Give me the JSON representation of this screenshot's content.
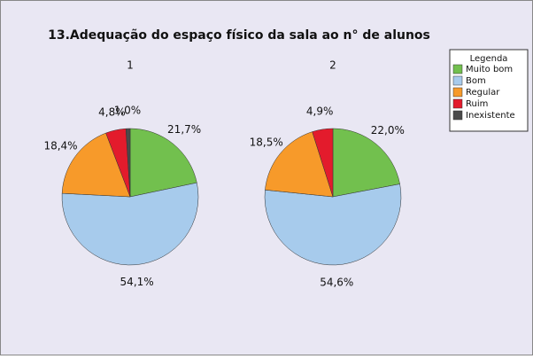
{
  "chart_data": {
    "type": "pie",
    "title": "13.Adequação do espaço físico da sala ao n° de alunos",
    "legend_title": "Legenda",
    "categories": [
      "Muito bom",
      "Bom",
      "Regular",
      "Ruim",
      "Inexistente"
    ],
    "colors": [
      "#72c04e",
      "#a7cbec",
      "#f79a2a",
      "#e31b2c",
      "#4a4a4a"
    ],
    "pies": [
      {
        "name": "1",
        "values": [
          21.7,
          54.1,
          18.4,
          4.8,
          1.0
        ],
        "value_labels": [
          "21,7%",
          "54,1%",
          "18,4%",
          "4,8%",
          "1,0%"
        ]
      },
      {
        "name": "2",
        "values": [
          22.0,
          54.6,
          18.5,
          4.9,
          null
        ],
        "value_labels": [
          "22,0%",
          "54,6%",
          "18,5%",
          "4,9%",
          null
        ]
      }
    ]
  }
}
